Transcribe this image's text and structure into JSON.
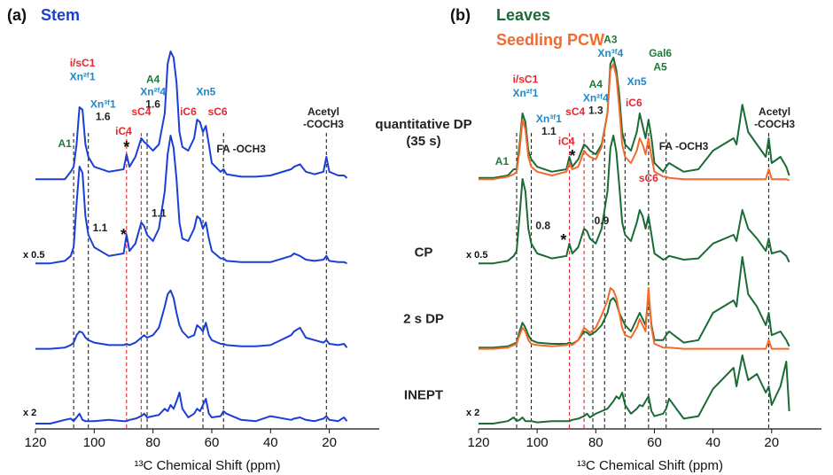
{
  "experiments": [
    "quantitative DP (35 s)",
    "CP",
    "2 s DP",
    "INEPT"
  ],
  "chart_data": [
    {
      "type": "line",
      "panel": "(a)",
      "xlabel": "¹³C Chemical Shift (ppm)",
      "xlim": [
        120,
        3
      ],
      "xticks": [
        120,
        100,
        80,
        60,
        40,
        20
      ],
      "ylim": [
        0,
        105
      ],
      "row_labels": [
        null,
        "x 0.5",
        null,
        "x 2"
      ],
      "x": [
        120,
        115,
        110,
        108,
        107,
        106,
        105,
        104,
        103,
        102,
        100,
        95,
        90,
        89,
        88,
        86,
        84,
        83,
        82,
        80,
        78,
        76,
        75,
        74,
        73,
        72,
        71,
        70,
        68,
        66,
        65,
        64,
        63,
        62,
        61,
        60,
        57,
        56,
        55,
        50,
        45,
        40,
        33,
        32,
        30,
        28,
        25,
        22,
        21,
        20,
        17,
        15,
        14
      ],
      "series": [
        {
          "name": "Stem",
          "color": "#1a3ed8",
          "values": [
            [
              2,
              2,
              2,
              8,
              12,
              30,
              60,
              58,
              30,
              20,
              12,
              8,
              10,
              22,
              12,
              20,
              35,
              32,
              30,
              25,
              30,
              55,
              95,
              105,
              100,
              80,
              40,
              28,
              25,
              35,
              50,
              48,
              40,
              45,
              30,
              15,
              8,
              10,
              6,
              4,
              4,
              5,
              10,
              12,
              14,
              8,
              6,
              8,
              20,
              8,
              5,
              5,
              3
            ],
            [
              2,
              2,
              4,
              8,
              15,
              50,
              80,
              75,
              40,
              25,
              15,
              8,
              10,
              25,
              12,
              18,
              35,
              32,
              25,
              20,
              30,
              60,
              90,
              105,
              95,
              70,
              35,
              22,
              20,
              30,
              40,
              38,
              30,
              35,
              22,
              12,
              6,
              6,
              4,
              3,
              3,
              3,
              8,
              10,
              8,
              5,
              4,
              5,
              8,
              4,
              3,
              3,
              2
            ],
            [
              1,
              1,
              2,
              4,
              6,
              12,
              15,
              14,
              10,
              8,
              6,
              4,
              4,
              5,
              4,
              6,
              10,
              12,
              10,
              12,
              18,
              35,
              45,
              48,
              42,
              30,
              20,
              15,
              10,
              12,
              20,
              18,
              15,
              22,
              12,
              8,
              5,
              5,
              4,
              3,
              3,
              4,
              12,
              15,
              18,
              10,
              8,
              6,
              8,
              5,
              4,
              5,
              2
            ],
            [
              0,
              0,
              3,
              4,
              2,
              5,
              8,
              3,
              2,
              2,
              2,
              3,
              2,
              2,
              3,
              4,
              6,
              8,
              5,
              6,
              7,
              12,
              10,
              15,
              12,
              18,
              25,
              12,
              5,
              8,
              12,
              10,
              15,
              20,
              8,
              5,
              6,
              10,
              8,
              3,
              2,
              6,
              3,
              4,
              5,
              3,
              2,
              4,
              6,
              3,
              2,
              5,
              2
            ]
          ]
        }
      ],
      "guides": [
        {
          "x": 107,
          "color": "#222222"
        },
        {
          "x": 102,
          "color": "#222222"
        },
        {
          "x": 89,
          "color": "#e8252f"
        },
        {
          "x": 84,
          "color": "#e8252f"
        },
        {
          "x": 82,
          "color": "#222222"
        },
        {
          "x": 63,
          "color": "#222222"
        },
        {
          "x": 56,
          "color": "#222222"
        },
        {
          "x": 21,
          "color": "#222222"
        }
      ],
      "annotations": [
        [
          {
            "text": "A1",
            "x": 110,
            "y": 30,
            "color": "#1e7a3a"
          },
          {
            "text": "i/sC1",
            "x": 104,
            "y": 95,
            "color": "#e8252f"
          },
          {
            "text": "Xn²ᶠ1",
            "x": 104,
            "y": 84,
            "color": "#1e88c8"
          },
          {
            "text": "Xn³ᶠ1",
            "x": 97,
            "y": 62,
            "color": "#1e88c8"
          },
          {
            "text": "1.6",
            "x": 97,
            "y": 52,
            "color": "#222222"
          },
          {
            "text": "iC4",
            "x": 90,
            "y": 40,
            "color": "#e8252f"
          },
          {
            "text": "*",
            "x": 89,
            "y": 27,
            "color": "#111111"
          },
          {
            "text": "sC4",
            "x": 84,
            "y": 56,
            "color": "#e8252f"
          },
          {
            "text": "A4",
            "x": 80,
            "y": 82,
            "color": "#1e7a3a"
          },
          {
            "text": "Xn²ᶠ4",
            "x": 80,
            "y": 72,
            "color": "#1e88c8"
          },
          {
            "text": "1.6",
            "x": 80,
            "y": 62,
            "color": "#222222"
          },
          {
            "text": "Xn5",
            "x": 62,
            "y": 72,
            "color": "#1e88c8"
          },
          {
            "text": "iC6",
            "x": 68,
            "y": 56,
            "color": "#e8252f"
          },
          {
            "text": "sC6",
            "x": 58,
            "y": 56,
            "color": "#e8252f"
          },
          {
            "text": "FA -OCH3",
            "x": 50,
            "y": 26,
            "color": "#222222"
          },
          {
            "text": "Acetyl",
            "x": 22,
            "y": 56,
            "color": "#222222"
          },
          {
            "text": "-COCH3",
            "x": 22,
            "y": 46,
            "color": "#222222"
          }
        ],
        [
          {
            "text": "*",
            "x": 90,
            "y": 24,
            "color": "#111111"
          },
          {
            "text": "1.1",
            "x": 98,
            "y": 30,
            "color": "#222222"
          },
          {
            "text": "1.1",
            "x": 78,
            "y": 42,
            "color": "#222222"
          }
        ],
        [],
        []
      ]
    },
    {
      "type": "line",
      "panel": "(b)",
      "xlabel": "¹³C Chemical Shift (ppm)",
      "xlim": [
        120,
        3
      ],
      "xticks": [
        120,
        100,
        80,
        60,
        40,
        20
      ],
      "ylim": [
        0,
        105
      ],
      "row_labels": [
        null,
        "x 0.5",
        null,
        "x 2"
      ],
      "x": [
        120,
        115,
        110,
        108,
        107,
        106,
        105,
        104,
        103,
        102,
        100,
        95,
        90,
        89,
        88,
        86,
        84,
        83,
        82,
        80,
        78,
        76,
        75,
        74,
        73,
        72,
        71,
        70,
        68,
        66,
        65,
        64,
        63,
        62,
        61,
        60,
        57,
        56,
        55,
        50,
        45,
        40,
        33,
        32,
        30,
        28,
        25,
        22,
        21,
        20,
        17,
        15,
        14
      ],
      "series": [
        {
          "name": "Leaves",
          "color": "#1a6b35",
          "values": [
            [
              3,
              3,
              5,
              10,
              10,
              30,
              55,
              48,
              25,
              18,
              12,
              8,
              10,
              20,
              12,
              18,
              30,
              28,
              25,
              22,
              30,
              55,
              95,
              100,
              90,
              70,
              40,
              30,
              25,
              40,
              55,
              45,
              35,
              50,
              35,
              15,
              8,
              12,
              15,
              8,
              10,
              25,
              35,
              30,
              62,
              40,
              30,
              20,
              35,
              15,
              20,
              12,
              5
            ],
            [
              2,
              2,
              4,
              8,
              12,
              40,
              70,
              60,
              30,
              18,
              10,
              6,
              8,
              18,
              10,
              15,
              30,
              28,
              22,
              18,
              30,
              60,
              95,
              105,
              92,
              65,
              35,
              25,
              20,
              35,
              45,
              40,
              30,
              40,
              25,
              10,
              5,
              6,
              8,
              5,
              6,
              18,
              25,
              20,
              45,
              30,
              22,
              12,
              22,
              10,
              12,
              8,
              3
            ],
            [
              2,
              2,
              3,
              5,
              6,
              15,
              22,
              18,
              12,
              8,
              6,
              5,
              5,
              6,
              5,
              8,
              15,
              14,
              12,
              15,
              20,
              30,
              40,
              42,
              38,
              30,
              25,
              20,
              15,
              25,
              30,
              25,
              20,
              45,
              20,
              8,
              8,
              12,
              15,
              6,
              8,
              30,
              40,
              35,
              75,
              45,
              35,
              20,
              30,
              12,
              15,
              8,
              3
            ],
            [
              0,
              0,
              2,
              5,
              2,
              3,
              5,
              2,
              2,
              2,
              1,
              2,
              2,
              2,
              3,
              4,
              6,
              8,
              5,
              8,
              10,
              12,
              15,
              18,
              22,
              20,
              25,
              15,
              8,
              12,
              15,
              14,
              18,
              22,
              10,
              6,
              8,
              12,
              20,
              4,
              6,
              28,
              45,
              30,
              55,
              35,
              40,
              25,
              30,
              15,
              30,
              50,
              10
            ]
          ]
        },
        {
          "name": "Seedling PCW",
          "color": "#f26a2c",
          "values": [
            [
              2,
              2,
              4,
              6,
              8,
              25,
              50,
              42,
              20,
              12,
              8,
              5,
              8,
              15,
              10,
              12,
              25,
              22,
              20,
              18,
              28,
              55,
              90,
              95,
              85,
              60,
              30,
              20,
              15,
              25,
              35,
              30,
              22,
              35,
              20,
              8,
              4,
              4,
              3,
              2,
              2,
              2,
              2,
              2,
              2,
              2,
              2,
              2,
              10,
              2,
              2,
              2,
              1
            ],
            null,
            [
              1,
              1,
              2,
              4,
              5,
              12,
              18,
              15,
              8,
              5,
              4,
              3,
              4,
              5,
              4,
              8,
              18,
              16,
              14,
              18,
              28,
              40,
              50,
              48,
              42,
              30,
              18,
              12,
              10,
              18,
              25,
              20,
              15,
              50,
              18,
              5,
              2,
              2,
              2,
              1,
              1,
              1,
              1,
              1,
              1,
              1,
              1,
              1,
              8,
              1,
              1,
              1,
              1
            ],
            null
          ]
        }
      ],
      "guides": [
        {
          "x": 107,
          "color": "#222222"
        },
        {
          "x": 102,
          "color": "#222222"
        },
        {
          "x": 89,
          "color": "#e8252f"
        },
        {
          "x": 84,
          "color": "#e8252f"
        },
        {
          "x": 81,
          "color": "#222222"
        },
        {
          "x": 77,
          "color": "#222222"
        },
        {
          "x": 70,
          "color": "#222222"
        },
        {
          "x": 62,
          "color": "#222222"
        },
        {
          "x": 56,
          "color": "#222222"
        },
        {
          "x": 21,
          "color": "#222222"
        }
      ],
      "annotations": [
        [
          {
            "text": "A1",
            "x": 112,
            "y": 16,
            "color": "#1e7a3a"
          },
          {
            "text": "i/sC1",
            "x": 104,
            "y": 82,
            "color": "#e8252f"
          },
          {
            "text": "Xn²ᶠ1",
            "x": 104,
            "y": 71,
            "color": "#1e88c8"
          },
          {
            "text": "Xn³ᶠ1",
            "x": 96,
            "y": 50,
            "color": "#1e88c8"
          },
          {
            "text": "1.1",
            "x": 96,
            "y": 40,
            "color": "#222222"
          },
          {
            "text": "sC4",
            "x": 87,
            "y": 56,
            "color": "#e8252f"
          },
          {
            "text": "iC4",
            "x": 90,
            "y": 32,
            "color": "#e8252f"
          },
          {
            "text": "*",
            "x": 88,
            "y": 20,
            "color": "#111111"
          },
          {
            "text": "A4",
            "x": 80,
            "y": 78,
            "color": "#1e7a3a"
          },
          {
            "text": "Xn²ᶠ4",
            "x": 80,
            "y": 67,
            "color": "#1e88c8"
          },
          {
            "text": "1.3",
            "x": 80,
            "y": 57,
            "color": "#222222"
          },
          {
            "text": "A3",
            "x": 75,
            "y": 114,
            "color": "#1e7a3a"
          },
          {
            "text": "Xn³ᶠ4",
            "x": 75,
            "y": 103,
            "color": "#1e88c8"
          },
          {
            "text": "Xn5",
            "x": 66,
            "y": 80,
            "color": "#1e88c8"
          },
          {
            "text": "iC6",
            "x": 67,
            "y": 63,
            "color": "#e8252f"
          },
          {
            "text": "Gal6",
            "x": 58,
            "y": 103,
            "color": "#1e7a3a"
          },
          {
            "text": "A5",
            "x": 58,
            "y": 92,
            "color": "#1e7a3a"
          },
          {
            "text": "FA -OCH3",
            "x": 50,
            "y": 28,
            "color": "#222222"
          },
          {
            "text": "Acetyl",
            "x": 19,
            "y": 56,
            "color": "#222222"
          },
          {
            "text": "-COCH3",
            "x": 19,
            "y": 46,
            "color": "#222222"
          }
        ],
        [
          {
            "text": "0.8",
            "x": 98,
            "y": 32,
            "color": "#222222"
          },
          {
            "text": "*",
            "x": 91,
            "y": 20,
            "color": "#111111"
          },
          {
            "text": "0.9",
            "x": 78,
            "y": 36,
            "color": "#222222"
          },
          {
            "text": "sC6",
            "x": 62,
            "y": 70,
            "color": "#e8252f"
          }
        ],
        [],
        []
      ]
    }
  ]
}
